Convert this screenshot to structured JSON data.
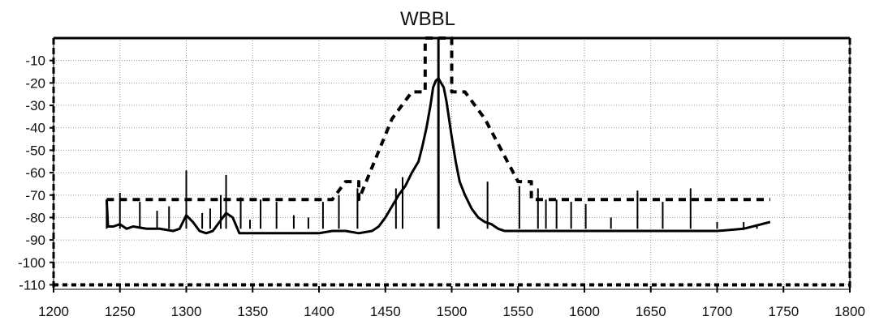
{
  "chart_data": {
    "type": "line",
    "title": "WBBL",
    "xlabel": "",
    "ylabel": "",
    "xlim": [
      1200,
      1800
    ],
    "ylim": [
      -112,
      0
    ],
    "grid": true,
    "x_ticks": [
      1200,
      1250,
      1300,
      1350,
      1400,
      1450,
      1500,
      1550,
      1600,
      1650,
      1700,
      1750,
      1800
    ],
    "y_ticks": [
      -10,
      -20,
      -30,
      -40,
      -50,
      -60,
      -70,
      -80,
      -90,
      -100,
      -110
    ],
    "series": [
      {
        "style": "solid",
        "color": "#000000",
        "x": [
          1240,
          1241,
          1245,
          1250,
          1255,
          1260,
          1270,
          1280,
          1290,
          1295,
          1300,
          1305,
          1310,
          1315,
          1320,
          1325,
          1330,
          1335,
          1340,
          1350,
          1360,
          1370,
          1380,
          1390,
          1400,
          1410,
          1420,
          1430,
          1440,
          1445,
          1450,
          1455,
          1460,
          1465,
          1470,
          1475,
          1478,
          1481,
          1484,
          1486,
          1488,
          1490,
          1492,
          1494,
          1496,
          1498,
          1500,
          1503,
          1506,
          1510,
          1515,
          1520,
          1525,
          1530,
          1535,
          1540,
          1545,
          1550,
          1555,
          1560,
          1570,
          1580,
          1600,
          1620,
          1640,
          1660,
          1680,
          1700,
          1720,
          1740
        ],
        "y": [
          -72,
          -84,
          -84,
          -83,
          -85,
          -84,
          -85,
          -85,
          -86,
          -85,
          -79,
          -82,
          -86,
          -87,
          -86,
          -82,
          -78,
          -80,
          -87,
          -87,
          -87,
          -87,
          -87,
          -87,
          -87,
          -86,
          -86,
          -87,
          -86,
          -84,
          -80,
          -75,
          -70,
          -66,
          -60,
          -55,
          -48,
          -40,
          -30,
          -22,
          -19,
          -18,
          -20,
          -22,
          -28,
          -36,
          -44,
          -55,
          -64,
          -70,
          -76,
          -80,
          -82,
          -83,
          -85,
          -86,
          -86,
          -86,
          -86,
          -86,
          -86,
          -86,
          -86,
          -86,
          -86,
          -86,
          -86,
          -86,
          -85,
          -82
        ],
        "spikes": [
          {
            "x": 1240,
            "y": -72
          },
          {
            "x": 1250,
            "y": -69
          },
          {
            "x": 1265,
            "y": -73
          },
          {
            "x": 1278,
            "y": -77
          },
          {
            "x": 1287,
            "y": -75
          },
          {
            "x": 1300,
            "y": -59
          },
          {
            "x": 1312,
            "y": -78
          },
          {
            "x": 1318,
            "y": -76
          },
          {
            "x": 1326,
            "y": -70
          },
          {
            "x": 1330,
            "y": -61
          },
          {
            "x": 1341,
            "y": -71
          },
          {
            "x": 1348,
            "y": -81
          },
          {
            "x": 1356,
            "y": -72
          },
          {
            "x": 1368,
            "y": -73
          },
          {
            "x": 1381,
            "y": -79
          },
          {
            "x": 1392,
            "y": -80
          },
          {
            "x": 1403,
            "y": -73
          },
          {
            "x": 1415,
            "y": -70
          },
          {
            "x": 1429,
            "y": -67
          },
          {
            "x": 1458,
            "y": -67
          },
          {
            "x": 1463,
            "y": -62
          },
          {
            "x": 1490,
            "y": 0
          },
          {
            "x": 1527,
            "y": -64
          },
          {
            "x": 1551,
            "y": -66
          },
          {
            "x": 1565,
            "y": -67
          },
          {
            "x": 1571,
            "y": -72
          },
          {
            "x": 1579,
            "y": -72
          },
          {
            "x": 1590,
            "y": -73
          },
          {
            "x": 1601,
            "y": -74
          },
          {
            "x": 1620,
            "y": -80
          },
          {
            "x": 1640,
            "y": -68
          },
          {
            "x": 1659,
            "y": -73
          },
          {
            "x": 1680,
            "y": -67
          },
          {
            "x": 1700,
            "y": -82
          },
          {
            "x": 1720,
            "y": -82
          },
          {
            "x": 1730,
            "y": -83
          }
        ]
      },
      {
        "style": "dashed",
        "color": "#000000",
        "x": [
          1240,
          1410,
          1410,
          1420,
          1420,
          1430,
          1430,
          1455,
          1470,
          1470,
          1480,
          1480,
          1480,
          1483,
          1483,
          1497,
          1497,
          1500,
          1500,
          1500,
          1510,
          1510,
          1525,
          1550,
          1550,
          1560,
          1560,
          1570,
          1570,
          1740
        ],
        "y": [
          -72,
          -72,
          -72,
          -64,
          -64,
          -64,
          -72,
          -36,
          -24,
          -24,
          -24,
          0,
          0,
          0,
          0,
          0,
          0,
          0,
          0,
          -24,
          -24,
          -24,
          -36,
          -64,
          -64,
          -64,
          -72,
          -72,
          -72,
          -72
        ]
      },
      {
        "style": "dashed",
        "color": "#000000",
        "x": [
          1200,
          1800
        ],
        "y": [
          -110,
          -110
        ]
      }
    ]
  }
}
